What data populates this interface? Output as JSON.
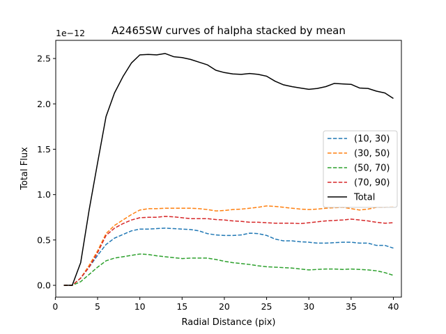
{
  "chart_data": {
    "type": "line",
    "title": "A2465SW curves of halpha stacked by mean",
    "xlabel": "Radial Distance (pix)",
    "ylabel": "Total Flux",
    "offset_text": "1e−12",
    "xlim": [
      0.05,
      40.95
    ],
    "ylim": [
      -0.13,
      2.7
    ],
    "xticks": [
      0,
      5,
      10,
      15,
      20,
      25,
      30,
      35,
      40
    ],
    "yticks": [
      0.0,
      0.5,
      1.0,
      1.5,
      2.0,
      2.5
    ],
    "ytick_labels": [
      "0.0",
      "0.5",
      "1.0",
      "1.5",
      "2.0",
      "2.5"
    ],
    "x": [
      1,
      2,
      3,
      4,
      5,
      6,
      7,
      8,
      9,
      10,
      11,
      12,
      13,
      14,
      15,
      16,
      17,
      18,
      19,
      20,
      21,
      22,
      23,
      24,
      25,
      26,
      27,
      28,
      29,
      30,
      31,
      32,
      33,
      34,
      35,
      36,
      37,
      38,
      39,
      40
    ],
    "legend_position": "center-right",
    "grid": false,
    "series": [
      {
        "name": "(10, 30)",
        "color": "#1f77b4",
        "style": "dashed",
        "values": [
          0.0,
          0.0,
          0.08,
          0.2,
          0.33,
          0.45,
          0.52,
          0.56,
          0.6,
          0.62,
          0.62,
          0.625,
          0.63,
          0.625,
          0.62,
          0.615,
          0.6,
          0.57,
          0.555,
          0.55,
          0.55,
          0.555,
          0.575,
          0.57,
          0.55,
          0.51,
          0.49,
          0.49,
          0.48,
          0.475,
          0.465,
          0.465,
          0.47,
          0.475,
          0.475,
          0.465,
          0.465,
          0.44,
          0.44,
          0.41
        ]
      },
      {
        "name": "(30, 50)",
        "color": "#ff7f0e",
        "style": "dashed",
        "values": [
          0.0,
          0.0,
          0.08,
          0.22,
          0.38,
          0.57,
          0.66,
          0.72,
          0.78,
          0.83,
          0.845,
          0.845,
          0.85,
          0.85,
          0.85,
          0.85,
          0.845,
          0.835,
          0.82,
          0.825,
          0.835,
          0.84,
          0.85,
          0.86,
          0.875,
          0.87,
          0.86,
          0.85,
          0.84,
          0.835,
          0.84,
          0.85,
          0.855,
          0.86,
          0.845,
          0.83,
          0.84,
          0.86,
          0.86,
          0.87
        ]
      },
      {
        "name": "(50, 70)",
        "color": "#2ca02c",
        "style": "dashed",
        "values": [
          0.0,
          0.0,
          0.04,
          0.12,
          0.2,
          0.27,
          0.3,
          0.315,
          0.33,
          0.345,
          0.34,
          0.325,
          0.315,
          0.305,
          0.295,
          0.3,
          0.3,
          0.3,
          0.285,
          0.265,
          0.25,
          0.24,
          0.23,
          0.215,
          0.205,
          0.2,
          0.195,
          0.19,
          0.18,
          0.17,
          0.175,
          0.18,
          0.18,
          0.175,
          0.18,
          0.175,
          0.17,
          0.16,
          0.14,
          0.11
        ]
      },
      {
        "name": "(70, 90)",
        "color": "#d62728",
        "style": "dashed",
        "values": [
          0.0,
          0.0,
          0.08,
          0.2,
          0.36,
          0.55,
          0.63,
          0.68,
          0.72,
          0.745,
          0.75,
          0.75,
          0.76,
          0.755,
          0.745,
          0.735,
          0.735,
          0.735,
          0.725,
          0.72,
          0.71,
          0.705,
          0.695,
          0.695,
          0.69,
          0.685,
          0.685,
          0.685,
          0.68,
          0.69,
          0.7,
          0.71,
          0.715,
          0.72,
          0.73,
          0.72,
          0.71,
          0.695,
          0.685,
          0.69
        ]
      },
      {
        "name": "Total",
        "color": "#000000",
        "style": "solid",
        "values": [
          0.0,
          0.0,
          0.25,
          0.83,
          1.35,
          1.86,
          2.12,
          2.3,
          2.45,
          2.54,
          2.545,
          2.54,
          2.555,
          2.52,
          2.51,
          2.49,
          2.46,
          2.43,
          2.37,
          2.345,
          2.33,
          2.325,
          2.335,
          2.325,
          2.305,
          2.25,
          2.21,
          2.19,
          2.175,
          2.16,
          2.17,
          2.19,
          2.225,
          2.22,
          2.215,
          2.175,
          2.17,
          2.14,
          2.12,
          2.06
        ]
      }
    ]
  }
}
